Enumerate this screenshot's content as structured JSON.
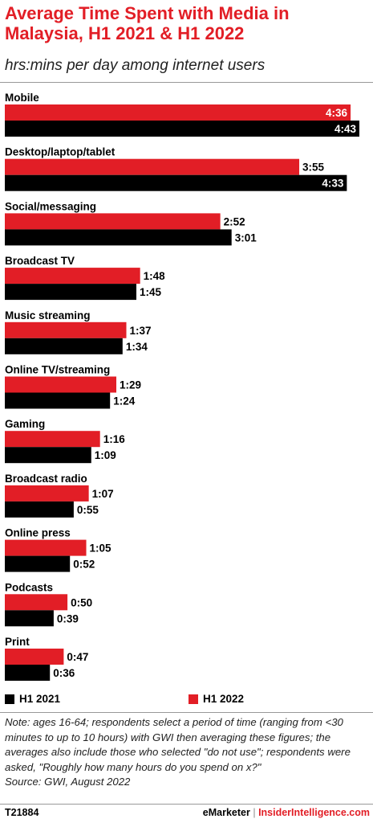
{
  "header": {
    "title": "Average Time Spent with Media in Malaysia, H1 2021 & H1 2022",
    "subtitle": "hrs:mins per day among internet users"
  },
  "colors": {
    "h2021": "#000000",
    "h2022": "#e21e26"
  },
  "chart_data": {
    "type": "bar",
    "orientation": "horizontal",
    "unit": "hrs:mins per day",
    "categories": [
      "Mobile",
      "Desktop/laptop/tablet",
      "Social/messaging",
      "Broadcast TV",
      "Music streaming",
      "Online TV/streaming",
      "Gaming",
      "Broadcast radio",
      "Online press",
      "Podcasts",
      "Print"
    ],
    "series": [
      {
        "name": "H1 2022",
        "color": "#e21e26",
        "values": [
          276,
          235,
          172,
          108,
          97,
          89,
          76,
          67,
          65,
          50,
          47
        ],
        "labels": [
          "4:36",
          "3:55",
          "2:52",
          "1:48",
          "1:37",
          "1:29",
          "1:16",
          "1:07",
          "1:05",
          "0:50",
          "0:47"
        ]
      },
      {
        "name": "H1 2021",
        "color": "#000000",
        "values": [
          283,
          273,
          181,
          105,
          94,
          84,
          69,
          55,
          52,
          39,
          36
        ],
        "labels": [
          "4:43",
          "4:33",
          "3:01",
          "1:45",
          "1:34",
          "1:24",
          "1:09",
          "0:55",
          "0:52",
          "0:39",
          "0:36"
        ]
      }
    ],
    "legend": [
      "H1 2021",
      "H1 2022"
    ],
    "legend_position": "bottom"
  },
  "note": "Note: ages 16-64; respondents select a period of time (ranging from <30 minutes to up to 10 hours) with GWI then averaging these figures; the averages also include those who selected \"do not use\"; respondents were asked, \"Roughly how many hours do you spend on x?\"",
  "source": "Source: GWI, August 2022",
  "footer": {
    "id": "T21884",
    "brand_left": "eMarketer",
    "separator": "|",
    "brand_right": "InsiderIntelligence.com"
  }
}
